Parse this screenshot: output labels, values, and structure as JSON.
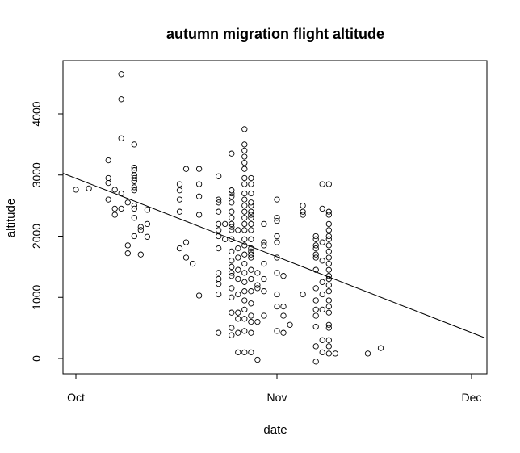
{
  "chart_data": {
    "type": "scatter",
    "title": "autumn migration flight altitude",
    "xlabel": "date",
    "ylabel": "altitude",
    "x_ticks": [
      {
        "date": "2000-10-01",
        "label": "Oct"
      },
      {
        "date": "2000-11-01",
        "label": "Nov"
      },
      {
        "date": "2000-12-01",
        "label": "Dec"
      }
    ],
    "y_ticks": [
      0,
      1000,
      2000,
      3000,
      4000
    ],
    "xlim": [
      "2000-09-30",
      "2000-12-03"
    ],
    "ylim": [
      -200,
      4750
    ],
    "grid": false,
    "regression_line": {
      "start": {
        "x": "2000-09-28",
        "y": 3070
      },
      "end": {
        "x": "2000-12-03",
        "y": 340
      }
    },
    "points": [
      {
        "x": "2000-10-01",
        "y": 2760
      },
      {
        "x": "2000-10-03",
        "y": 2780
      },
      {
        "x": "2000-10-06",
        "y": 3240
      },
      {
        "x": "2000-10-06",
        "y": 2950
      },
      {
        "x": "2000-10-06",
        "y": 2870
      },
      {
        "x": "2000-10-06",
        "y": 2600
      },
      {
        "x": "2000-10-07",
        "y": 2760
      },
      {
        "x": "2000-10-07",
        "y": 2450
      },
      {
        "x": "2000-10-07",
        "y": 2350
      },
      {
        "x": "2000-10-08",
        "y": 2700
      },
      {
        "x": "2000-10-08",
        "y": 2450
      },
      {
        "x": "2000-10-08",
        "y": 4650
      },
      {
        "x": "2000-10-08",
        "y": 4240
      },
      {
        "x": "2000-10-08",
        "y": 3600
      },
      {
        "x": "2000-10-09",
        "y": 2550
      },
      {
        "x": "2000-10-09",
        "y": 1850
      },
      {
        "x": "2000-10-09",
        "y": 1720
      },
      {
        "x": "2000-10-10",
        "y": 3500
      },
      {
        "x": "2000-10-10",
        "y": 3120
      },
      {
        "x": "2000-10-10",
        "y": 3080
      },
      {
        "x": "2000-10-10",
        "y": 3000
      },
      {
        "x": "2000-10-10",
        "y": 2950
      },
      {
        "x": "2000-10-10",
        "y": 2900
      },
      {
        "x": "2000-10-10",
        "y": 2800
      },
      {
        "x": "2000-10-10",
        "y": 2750
      },
      {
        "x": "2000-10-10",
        "y": 2500
      },
      {
        "x": "2000-10-10",
        "y": 2450
      },
      {
        "x": "2000-10-10",
        "y": 2300
      },
      {
        "x": "2000-10-10",
        "y": 2000
      },
      {
        "x": "2000-10-11",
        "y": 2150
      },
      {
        "x": "2000-10-11",
        "y": 2100
      },
      {
        "x": "2000-10-11",
        "y": 1700
      },
      {
        "x": "2000-10-12",
        "y": 2430
      },
      {
        "x": "2000-10-12",
        "y": 2200
      },
      {
        "x": "2000-10-12",
        "y": 1990
      },
      {
        "x": "2000-10-17",
        "y": 2850
      },
      {
        "x": "2000-10-17",
        "y": 2750
      },
      {
        "x": "2000-10-17",
        "y": 2600
      },
      {
        "x": "2000-10-17",
        "y": 2400
      },
      {
        "x": "2000-10-17",
        "y": 1800
      },
      {
        "x": "2000-10-18",
        "y": 3100
      },
      {
        "x": "2000-10-18",
        "y": 1900
      },
      {
        "x": "2000-10-18",
        "y": 1650
      },
      {
        "x": "2000-10-19",
        "y": 1550
      },
      {
        "x": "2000-10-20",
        "y": 3100
      },
      {
        "x": "2000-10-20",
        "y": 2850
      },
      {
        "x": "2000-10-20",
        "y": 2650
      },
      {
        "x": "2000-10-20",
        "y": 2350
      },
      {
        "x": "2000-10-20",
        "y": 1030
      },
      {
        "x": "2000-10-23",
        "y": 2980
      },
      {
        "x": "2000-10-23",
        "y": 2600
      },
      {
        "x": "2000-10-23",
        "y": 2550
      },
      {
        "x": "2000-10-23",
        "y": 2400
      },
      {
        "x": "2000-10-23",
        "y": 2200
      },
      {
        "x": "2000-10-23",
        "y": 2100
      },
      {
        "x": "2000-10-23",
        "y": 2000
      },
      {
        "x": "2000-10-23",
        "y": 1800
      },
      {
        "x": "2000-10-23",
        "y": 1400
      },
      {
        "x": "2000-10-23",
        "y": 1300
      },
      {
        "x": "2000-10-23",
        "y": 1220
      },
      {
        "x": "2000-10-23",
        "y": 1050
      },
      {
        "x": "2000-10-23",
        "y": 420
      },
      {
        "x": "2000-10-24",
        "y": 2200
      },
      {
        "x": "2000-10-24",
        "y": 1950
      },
      {
        "x": "2000-10-25",
        "y": 3350
      },
      {
        "x": "2000-10-25",
        "y": 2750
      },
      {
        "x": "2000-10-25",
        "y": 2700
      },
      {
        "x": "2000-10-25",
        "y": 2650
      },
      {
        "x": "2000-10-25",
        "y": 2550
      },
      {
        "x": "2000-10-25",
        "y": 2400
      },
      {
        "x": "2000-10-25",
        "y": 2300
      },
      {
        "x": "2000-10-25",
        "y": 2200
      },
      {
        "x": "2000-10-25",
        "y": 2150
      },
      {
        "x": "2000-10-25",
        "y": 2100
      },
      {
        "x": "2000-10-25",
        "y": 1950
      },
      {
        "x": "2000-10-25",
        "y": 1750
      },
      {
        "x": "2000-10-25",
        "y": 1600
      },
      {
        "x": "2000-10-25",
        "y": 1500
      },
      {
        "x": "2000-10-25",
        "y": 1400
      },
      {
        "x": "2000-10-25",
        "y": 1350
      },
      {
        "x": "2000-10-25",
        "y": 1150
      },
      {
        "x": "2000-10-25",
        "y": 1000
      },
      {
        "x": "2000-10-25",
        "y": 750
      },
      {
        "x": "2000-10-25",
        "y": 500
      },
      {
        "x": "2000-10-25",
        "y": 380
      },
      {
        "x": "2000-10-26",
        "y": 2100
      },
      {
        "x": "2000-10-26",
        "y": 1800
      },
      {
        "x": "2000-10-26",
        "y": 1650
      },
      {
        "x": "2000-10-26",
        "y": 1450
      },
      {
        "x": "2000-10-26",
        "y": 1300
      },
      {
        "x": "2000-10-26",
        "y": 1050
      },
      {
        "x": "2000-10-26",
        "y": 750
      },
      {
        "x": "2000-10-26",
        "y": 650
      },
      {
        "x": "2000-10-26",
        "y": 420
      },
      {
        "x": "2000-10-26",
        "y": 100
      },
      {
        "x": "2000-10-27",
        "y": 3750
      },
      {
        "x": "2000-10-27",
        "y": 3500
      },
      {
        "x": "2000-10-27",
        "y": 3400
      },
      {
        "x": "2000-10-27",
        "y": 3300
      },
      {
        "x": "2000-10-27",
        "y": 3200
      },
      {
        "x": "2000-10-27",
        "y": 3100
      },
      {
        "x": "2000-10-27",
        "y": 2950
      },
      {
        "x": "2000-10-27",
        "y": 2850
      },
      {
        "x": "2000-10-27",
        "y": 2700
      },
      {
        "x": "2000-10-27",
        "y": 2600
      },
      {
        "x": "2000-10-27",
        "y": 2500
      },
      {
        "x": "2000-10-27",
        "y": 2400
      },
      {
        "x": "2000-10-27",
        "y": 2300
      },
      {
        "x": "2000-10-27",
        "y": 2200
      },
      {
        "x": "2000-10-27",
        "y": 2100
      },
      {
        "x": "2000-10-27",
        "y": 1950
      },
      {
        "x": "2000-10-27",
        "y": 1850
      },
      {
        "x": "2000-10-27",
        "y": 1700
      },
      {
        "x": "2000-10-27",
        "y": 1550
      },
      {
        "x": "2000-10-27",
        "y": 1400
      },
      {
        "x": "2000-10-27",
        "y": 1250
      },
      {
        "x": "2000-10-27",
        "y": 1100
      },
      {
        "x": "2000-10-27",
        "y": 950
      },
      {
        "x": "2000-10-27",
        "y": 800
      },
      {
        "x": "2000-10-27",
        "y": 650
      },
      {
        "x": "2000-10-27",
        "y": 450
      },
      {
        "x": "2000-10-27",
        "y": 100
      },
      {
        "x": "2000-10-28",
        "y": 2950
      },
      {
        "x": "2000-10-28",
        "y": 2850
      },
      {
        "x": "2000-10-28",
        "y": 2700
      },
      {
        "x": "2000-10-28",
        "y": 2550
      },
      {
        "x": "2000-10-28",
        "y": 2500
      },
      {
        "x": "2000-10-28",
        "y": 2400
      },
      {
        "x": "2000-10-28",
        "y": 2350
      },
      {
        "x": "2000-10-28",
        "y": 2300
      },
      {
        "x": "2000-10-28",
        "y": 2200
      },
      {
        "x": "2000-10-28",
        "y": 2100
      },
      {
        "x": "2000-10-28",
        "y": 1950
      },
      {
        "x": "2000-10-28",
        "y": 1800
      },
      {
        "x": "2000-10-28",
        "y": 1750
      },
      {
        "x": "2000-10-28",
        "y": 1700
      },
      {
        "x": "2000-10-28",
        "y": 1650
      },
      {
        "x": "2000-10-28",
        "y": 1450
      },
      {
        "x": "2000-10-28",
        "y": 1300
      },
      {
        "x": "2000-10-28",
        "y": 1100
      },
      {
        "x": "2000-10-28",
        "y": 900
      },
      {
        "x": "2000-10-28",
        "y": 700
      },
      {
        "x": "2000-10-28",
        "y": 600
      },
      {
        "x": "2000-10-28",
        "y": 420
      },
      {
        "x": "2000-10-28",
        "y": 100
      },
      {
        "x": "2000-10-29",
        "y": 1400
      },
      {
        "x": "2000-10-29",
        "y": 1200
      },
      {
        "x": "2000-10-29",
        "y": 1150
      },
      {
        "x": "2000-10-29",
        "y": 600
      },
      {
        "x": "2000-10-29",
        "y": -20
      },
      {
        "x": "2000-10-30",
        "y": 2200
      },
      {
        "x": "2000-10-30",
        "y": 1900
      },
      {
        "x": "2000-10-30",
        "y": 1850
      },
      {
        "x": "2000-10-30",
        "y": 1550
      },
      {
        "x": "2000-10-30",
        "y": 1300
      },
      {
        "x": "2000-10-30",
        "y": 1100
      },
      {
        "x": "2000-10-30",
        "y": 700
      },
      {
        "x": "2000-11-01",
        "y": 2600
      },
      {
        "x": "2000-11-01",
        "y": 2300
      },
      {
        "x": "2000-11-01",
        "y": 2250
      },
      {
        "x": "2000-11-01",
        "y": 2000
      },
      {
        "x": "2000-11-01",
        "y": 1900
      },
      {
        "x": "2000-11-01",
        "y": 1650
      },
      {
        "x": "2000-11-01",
        "y": 1400
      },
      {
        "x": "2000-11-01",
        "y": 1050
      },
      {
        "x": "2000-11-01",
        "y": 850
      },
      {
        "x": "2000-11-01",
        "y": 450
      },
      {
        "x": "2000-11-02",
        "y": 1350
      },
      {
        "x": "2000-11-02",
        "y": 850
      },
      {
        "x": "2000-11-02",
        "y": 700
      },
      {
        "x": "2000-11-02",
        "y": 420
      },
      {
        "x": "2000-11-03",
        "y": 550
      },
      {
        "x": "2000-11-05",
        "y": 2500
      },
      {
        "x": "2000-11-05",
        "y": 2400
      },
      {
        "x": "2000-11-05",
        "y": 2350
      },
      {
        "x": "2000-11-05",
        "y": 1050
      },
      {
        "x": "2000-11-07",
        "y": 2000
      },
      {
        "x": "2000-11-07",
        "y": 1950
      },
      {
        "x": "2000-11-07",
        "y": 1850
      },
      {
        "x": "2000-11-07",
        "y": 1800
      },
      {
        "x": "2000-11-07",
        "y": 1700
      },
      {
        "x": "2000-11-07",
        "y": 1650
      },
      {
        "x": "2000-11-07",
        "y": 1450
      },
      {
        "x": "2000-11-07",
        "y": 1150
      },
      {
        "x": "2000-11-07",
        "y": 950
      },
      {
        "x": "2000-11-07",
        "y": 800
      },
      {
        "x": "2000-11-07",
        "y": 700
      },
      {
        "x": "2000-11-07",
        "y": 520
      },
      {
        "x": "2000-11-07",
        "y": 200
      },
      {
        "x": "2000-11-07",
        "y": -50
      },
      {
        "x": "2000-11-08",
        "y": 2850
      },
      {
        "x": "2000-11-08",
        "y": 2450
      },
      {
        "x": "2000-11-08",
        "y": 1900
      },
      {
        "x": "2000-11-08",
        "y": 1600
      },
      {
        "x": "2000-11-08",
        "y": 1250
      },
      {
        "x": "2000-11-08",
        "y": 1050
      },
      {
        "x": "2000-11-08",
        "y": 800
      },
      {
        "x": "2000-11-08",
        "y": 300
      },
      {
        "x": "2000-11-08",
        "y": 100
      },
      {
        "x": "2000-11-09",
        "y": 2850
      },
      {
        "x": "2000-11-09",
        "y": 2400
      },
      {
        "x": "2000-11-09",
        "y": 2350
      },
      {
        "x": "2000-11-09",
        "y": 2200
      },
      {
        "x": "2000-11-09",
        "y": 2100
      },
      {
        "x": "2000-11-09",
        "y": 2000
      },
      {
        "x": "2000-11-09",
        "y": 1950
      },
      {
        "x": "2000-11-09",
        "y": 1850
      },
      {
        "x": "2000-11-09",
        "y": 1750
      },
      {
        "x": "2000-11-09",
        "y": 1650
      },
      {
        "x": "2000-11-09",
        "y": 1550
      },
      {
        "x": "2000-11-09",
        "y": 1450
      },
      {
        "x": "2000-11-09",
        "y": 1350
      },
      {
        "x": "2000-11-09",
        "y": 1300
      },
      {
        "x": "2000-11-09",
        "y": 1200
      },
      {
        "x": "2000-11-09",
        "y": 1100
      },
      {
        "x": "2000-11-09",
        "y": 950
      },
      {
        "x": "2000-11-09",
        "y": 850
      },
      {
        "x": "2000-11-09",
        "y": 750
      },
      {
        "x": "2000-11-09",
        "y": 550
      },
      {
        "x": "2000-11-09",
        "y": 500
      },
      {
        "x": "2000-11-09",
        "y": 300
      },
      {
        "x": "2000-11-09",
        "y": 200
      },
      {
        "x": "2000-11-09",
        "y": 80
      },
      {
        "x": "2000-11-10",
        "y": 80
      },
      {
        "x": "2000-11-15",
        "y": 80
      },
      {
        "x": "2000-11-17",
        "y": 170
      }
    ]
  }
}
